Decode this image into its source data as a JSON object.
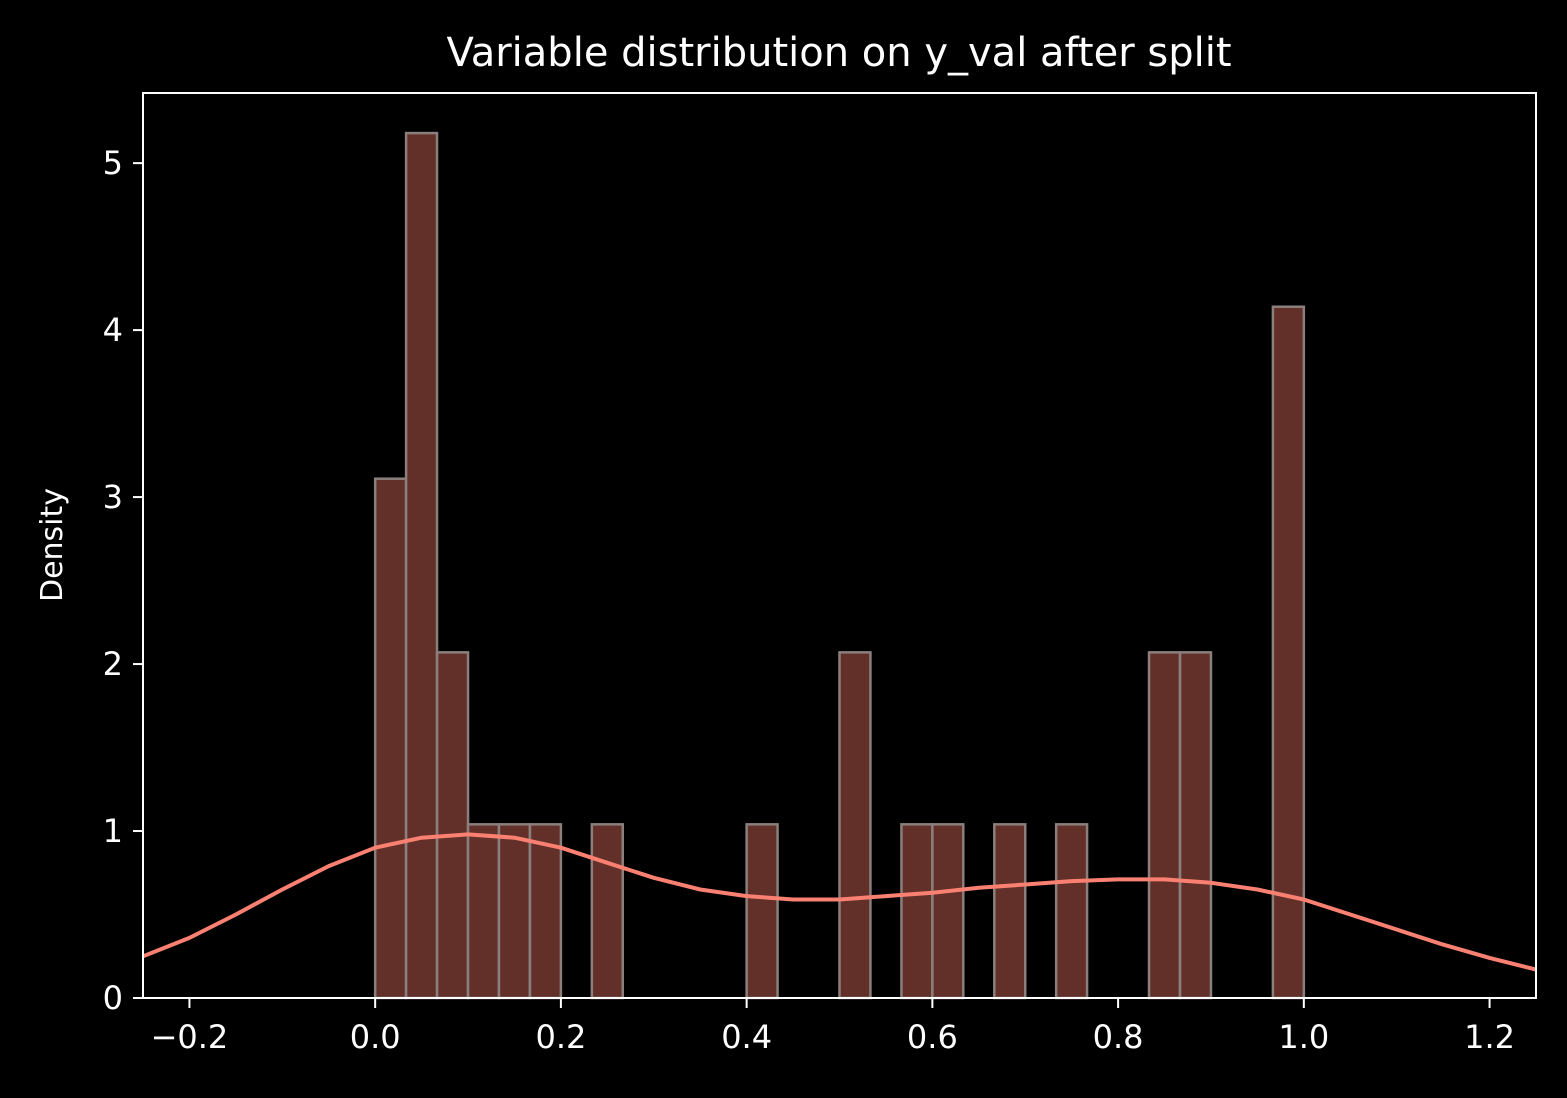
{
  "chart_data": {
    "type": "histogram",
    "title": "Variable distribution on y_val after split",
    "xlabel": "",
    "ylabel": "Density",
    "xlim": [
      -0.25,
      1.25
    ],
    "ylim": [
      0,
      5.42
    ],
    "xticks": [
      -0.2,
      0.0,
      0.2,
      0.4,
      0.6,
      0.8,
      1.0,
      1.2
    ],
    "xtick_labels": [
      "−0.2",
      "0.0",
      "0.2",
      "0.4",
      "0.6",
      "0.8",
      "1.0",
      "1.2"
    ],
    "yticks": [
      0,
      1,
      2,
      3,
      4,
      5
    ],
    "ytick_labels": [
      "0",
      "1",
      "2",
      "3",
      "4",
      "5"
    ],
    "grid": false,
    "bin_width": 0.0333,
    "bins": [
      {
        "x0": 0.0,
        "density": 3.11
      },
      {
        "x0": 0.0333,
        "density": 5.18
      },
      {
        "x0": 0.0667,
        "density": 2.07
      },
      {
        "x0": 0.1,
        "density": 1.04
      },
      {
        "x0": 0.1333,
        "density": 1.04
      },
      {
        "x0": 0.1667,
        "density": 1.04
      },
      {
        "x0": 0.2333,
        "density": 1.04
      },
      {
        "x0": 0.4,
        "density": 1.04
      },
      {
        "x0": 0.5,
        "density": 2.07
      },
      {
        "x0": 0.5667,
        "density": 1.04
      },
      {
        "x0": 0.6,
        "density": 1.04
      },
      {
        "x0": 0.6667,
        "density": 1.04
      },
      {
        "x0": 0.7333,
        "density": 1.04
      },
      {
        "x0": 0.8333,
        "density": 2.07
      },
      {
        "x0": 0.8667,
        "density": 2.07
      },
      {
        "x0": 0.9667,
        "density": 4.14
      }
    ],
    "kde": {
      "x": [
        -0.25,
        -0.2,
        -0.15,
        -0.1,
        -0.05,
        0.0,
        0.05,
        0.1,
        0.15,
        0.2,
        0.25,
        0.3,
        0.35,
        0.4,
        0.45,
        0.5,
        0.55,
        0.6,
        0.65,
        0.7,
        0.75,
        0.8,
        0.85,
        0.9,
        0.95,
        1.0,
        1.05,
        1.1,
        1.15,
        1.2,
        1.25
      ],
      "y": [
        0.25,
        0.36,
        0.5,
        0.65,
        0.79,
        0.9,
        0.96,
        0.98,
        0.96,
        0.9,
        0.81,
        0.72,
        0.65,
        0.61,
        0.59,
        0.59,
        0.61,
        0.63,
        0.66,
        0.68,
        0.7,
        0.71,
        0.71,
        0.69,
        0.65,
        0.59,
        0.5,
        0.41,
        0.32,
        0.24,
        0.17
      ]
    },
    "colors": {
      "background": "#000000",
      "bar_fill": "#633029",
      "bar_edge": "#8a7f7c",
      "kde_line": "#fa8072",
      "axes": "#ffffff",
      "text": "#ffffff"
    }
  }
}
